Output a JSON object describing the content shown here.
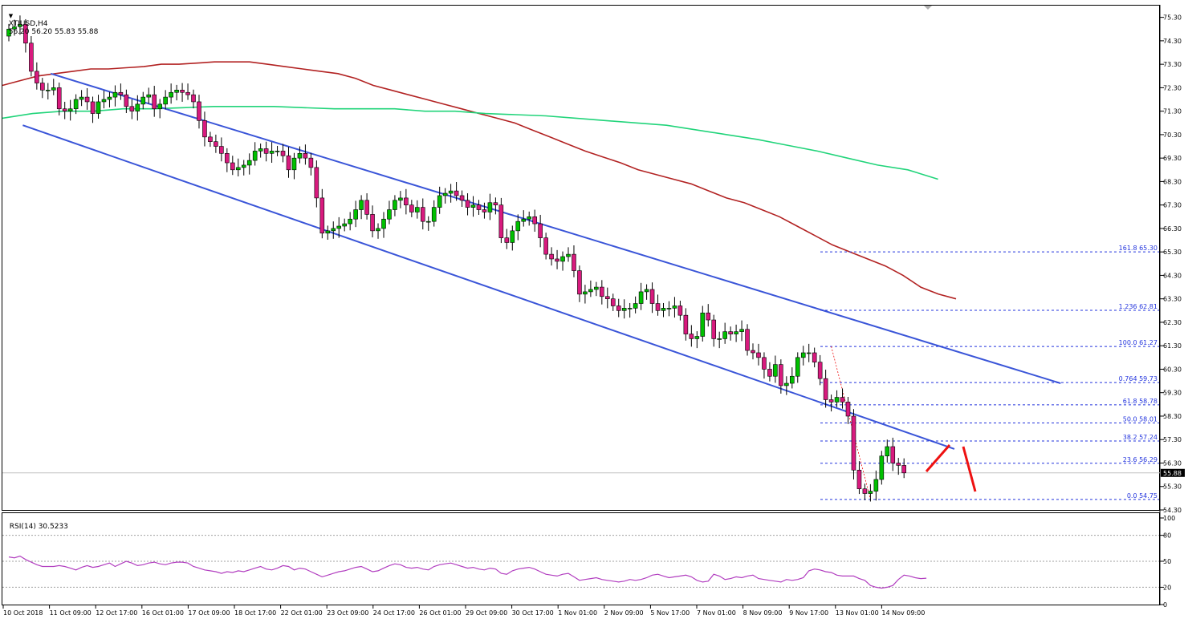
{
  "header": {
    "menu_glyph": "▼",
    "symbol": "XTIUSD,H4",
    "ohlc": "56.20 56.20 55.83 55.88",
    "rsi_label": "RSI(14) 30.5233"
  },
  "colors": {
    "background": "#ffffff",
    "bull_body": "#00c000",
    "bear_body": "#d81a7e",
    "wick": "#000000",
    "channel": "#3a55d8",
    "ma_slow": "#b22222",
    "ma_green": "#21d47a",
    "fib": "#2233dd",
    "rsi_line": "#b23fc0",
    "arrow": "#ee1111",
    "price_line": "#c0c0c0"
  },
  "chart_data": [
    {
      "type": "candlestick",
      "symbol": "XTIUSD",
      "timeframe": "H4",
      "ylim": [
        54.3,
        75.8
      ],
      "y_ticks": [
        "75.30",
        "74.30",
        "73.30",
        "72.30",
        "71.30",
        "70.30",
        "69.30",
        "68.30",
        "67.30",
        "66.30",
        "65.30",
        "64.30",
        "63.30",
        "62.30",
        "61.30",
        "60.30",
        "59.30",
        "58.30",
        "57.30",
        "56.30",
        "55.30",
        "54.30"
      ],
      "x_ticks": [
        "10 Oct 2018",
        "11 Oct 09:00",
        "12 Oct 17:00",
        "16 Oct 01:00",
        "17 Oct 09:00",
        "18 Oct 17:00",
        "22 Oct 01:00",
        "23 Oct 09:00",
        "24 Oct 17:00",
        "26 Oct 01:00",
        "29 Oct 09:00",
        "30 Oct 17:00",
        "1 Nov 01:00",
        "2 Nov 09:00",
        "5 Nov 17:00",
        "7 Nov 01:00",
        "8 Nov 09:00",
        "9 Nov 17:00",
        "13 Nov 01:00",
        "14 Nov 09:00"
      ],
      "last_price": "55.88",
      "closes": [
        74.8,
        74.9,
        75.0,
        74.2,
        73.0,
        72.5,
        72.2,
        72.2,
        72.3,
        71.4,
        71.3,
        71.4,
        71.8,
        71.9,
        71.7,
        71.2,
        71.7,
        71.8,
        71.9,
        72.1,
        72.0,
        71.5,
        71.3,
        71.6,
        71.9,
        72.0,
        71.4,
        71.6,
        71.9,
        72.1,
        72.2,
        72.1,
        72.0,
        71.7,
        70.9,
        70.2,
        70.0,
        69.8,
        69.5,
        69.1,
        68.8,
        68.9,
        69.0,
        69.2,
        69.6,
        69.7,
        69.5,
        69.6,
        69.6,
        69.4,
        68.8,
        69.3,
        69.5,
        69.3,
        68.9,
        67.6,
        66.1,
        66.2,
        66.3,
        66.4,
        66.5,
        66.7,
        67.1,
        67.5,
        66.9,
        66.2,
        66.3,
        66.7,
        67.1,
        67.5,
        67.6,
        67.3,
        67.0,
        67.2,
        66.6,
        66.6,
        67.2,
        67.7,
        67.8,
        67.9,
        67.7,
        67.5,
        67.2,
        67.3,
        67.1,
        67.0,
        67.4,
        67.3,
        65.9,
        65.7,
        66.2,
        66.6,
        66.7,
        66.8,
        66.5,
        65.9,
        65.2,
        65.0,
        64.9,
        65.1,
        65.2,
        64.5,
        63.5,
        63.6,
        63.7,
        63.8,
        63.4,
        63.3,
        63.0,
        62.8,
        62.9,
        62.9,
        63.1,
        63.6,
        63.7,
        63.1,
        62.8,
        62.9,
        62.9,
        63.0,
        62.6,
        61.8,
        61.6,
        61.7,
        62.7,
        62.4,
        61.6,
        61.6,
        61.9,
        61.8,
        61.9,
        62.0,
        61.1,
        61.0,
        60.8,
        60.3,
        60.0,
        60.5,
        59.6,
        59.7,
        60.0,
        60.8,
        61.0,
        61.0,
        60.6,
        59.9,
        59.0,
        58.9,
        59.1,
        58.9,
        58.3,
        56.0,
        55.2,
        55.0,
        55.1,
        55.6,
        56.6,
        57.0,
        56.3,
        56.2,
        55.88
      ],
      "series": [
        {
          "name": "",
          "kind": "moving-average",
          "values": [
            72.4,
            72.6,
            72.8,
            72.9,
            73.0,
            73.1,
            73.1,
            73.15,
            73.2,
            73.3,
            73.3,
            73.35,
            73.4,
            73.4,
            73.4,
            73.3,
            73.2,
            73.1,
            73.0,
            72.9,
            72.7,
            72.4,
            72.2,
            72.0,
            71.8,
            71.6,
            71.4,
            71.2,
            71.0,
            70.8,
            70.5,
            70.2,
            69.9,
            69.6,
            69.35,
            69.1,
            68.8,
            68.6,
            68.4,
            68.2,
            67.9,
            67.6,
            67.4,
            67.1,
            66.8,
            66.4,
            66.0,
            65.6,
            65.3,
            65.0,
            64.7,
            64.3,
            63.8,
            63.5,
            63.3
          ]
        },
        {
          "name": "",
          "kind": "moving-average",
          "values": [
            71.0,
            71.2,
            71.3,
            71.3,
            71.4,
            71.4,
            71.45,
            71.5,
            71.5,
            71.5,
            71.45,
            71.4,
            71.4,
            71.4,
            71.3,
            71.3,
            71.2,
            71.15,
            71.1,
            71.0,
            70.9,
            70.8,
            70.7,
            70.5,
            70.3,
            70.1,
            69.85,
            69.6,
            69.3,
            69.0,
            68.8,
            68.4
          ]
        }
      ],
      "fibonacci": [
        {
          "label": "161.8 65.30",
          "value": 65.3
        },
        {
          "label": "1.236 62.81",
          "value": 62.81
        },
        {
          "label": "100.0 61.27",
          "value": 61.27
        },
        {
          "label": "0.764 59.73",
          "value": 59.73
        },
        {
          "label": "61.8 58.78",
          "value": 58.78
        },
        {
          "label": "50.0 58.01",
          "value": 58.01
        },
        {
          "label": "38.2 57.24",
          "value": 57.24
        },
        {
          "label": "23.6 56.29",
          "value": 56.29
        },
        {
          "label": "0.0 54.75",
          "value": 54.75
        }
      ],
      "channel": {
        "upper": [
          [
            7.5,
            72.9
          ],
          [
            188,
            59.7
          ]
        ],
        "lower": [
          [
            2.5,
            70.7
          ],
          [
            169,
            56.9
          ]
        ]
      }
    },
    {
      "type": "line",
      "name": "RSI(14)",
      "ylim": [
        0,
        100
      ],
      "y_ticks": [
        "100",
        "80",
        "50",
        "20",
        "0"
      ],
      "levels": [
        80,
        50,
        20
      ],
      "values": [
        55,
        54,
        56,
        52,
        49,
        46,
        44,
        44,
        44,
        45,
        44,
        42,
        40,
        43,
        45,
        43,
        44,
        46,
        48,
        44,
        47,
        50,
        48,
        45,
        46,
        48,
        49,
        47,
        46,
        48,
        49,
        49,
        48,
        44,
        42,
        40,
        39,
        38,
        36,
        38,
        37,
        39,
        38,
        40,
        42,
        44,
        41,
        40,
        42,
        45,
        44,
        40,
        42,
        41,
        38,
        35,
        32,
        34,
        36,
        38,
        39,
        41,
        43,
        44,
        41,
        38,
        39,
        42,
        45,
        47,
        46,
        43,
        42,
        43,
        41,
        40,
        44,
        46,
        47,
        48,
        46,
        44,
        42,
        43,
        41,
        40,
        42,
        41,
        36,
        35,
        39,
        41,
        42,
        43,
        41,
        38,
        35,
        34,
        33,
        35,
        36,
        32,
        28,
        29,
        30,
        31,
        29,
        28,
        27,
        26,
        27,
        29,
        28,
        29,
        31,
        34,
        35,
        33,
        31,
        32,
        33,
        34,
        32,
        28,
        26,
        27,
        35,
        33,
        29,
        30,
        32,
        31,
        33,
        34,
        30,
        29,
        28,
        27,
        26,
        29,
        28,
        29,
        31,
        39,
        41,
        40,
        38,
        37,
        34,
        33,
        33,
        33,
        30,
        28,
        22,
        20,
        19,
        20,
        22,
        29,
        34,
        33,
        31,
        30,
        30.5
      ]
    }
  ]
}
